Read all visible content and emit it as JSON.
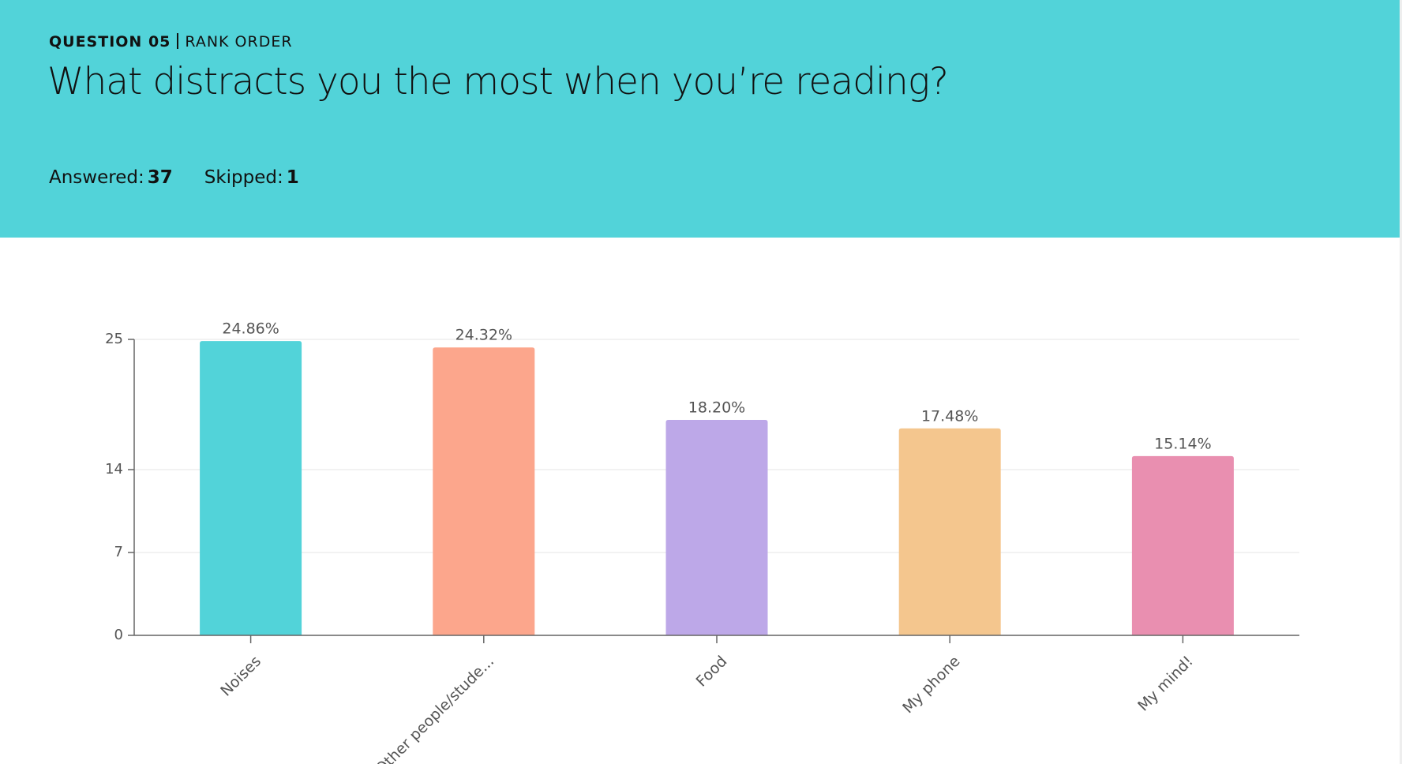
{
  "header": {
    "question": "QUESTION 05",
    "question_type": "RANK ORDER",
    "title": "What distracts you the most when you’re reading?",
    "answered_label": "Answered:",
    "answered": 37,
    "skipped_label": "Skipped:",
    "skipped": 1
  },
  "chart_data": {
    "type": "bar",
    "categories": [
      "Noises",
      "Other people/stude...",
      "Food",
      "My phone",
      "My mind!"
    ],
    "values": [
      24.86,
      24.32,
      18.2,
      17.48,
      15.14
    ],
    "value_labels": [
      "24.86%",
      "24.32%",
      "18.20%",
      "17.48%",
      "15.14%"
    ],
    "colors": [
      "#52d3d9",
      "#fca68c",
      "#bda8e8",
      "#f4c68e",
      "#e98fb0"
    ],
    "ylim": [
      0,
      25
    ],
    "yticks": [
      0,
      7,
      14,
      25
    ],
    "grid": true
  }
}
